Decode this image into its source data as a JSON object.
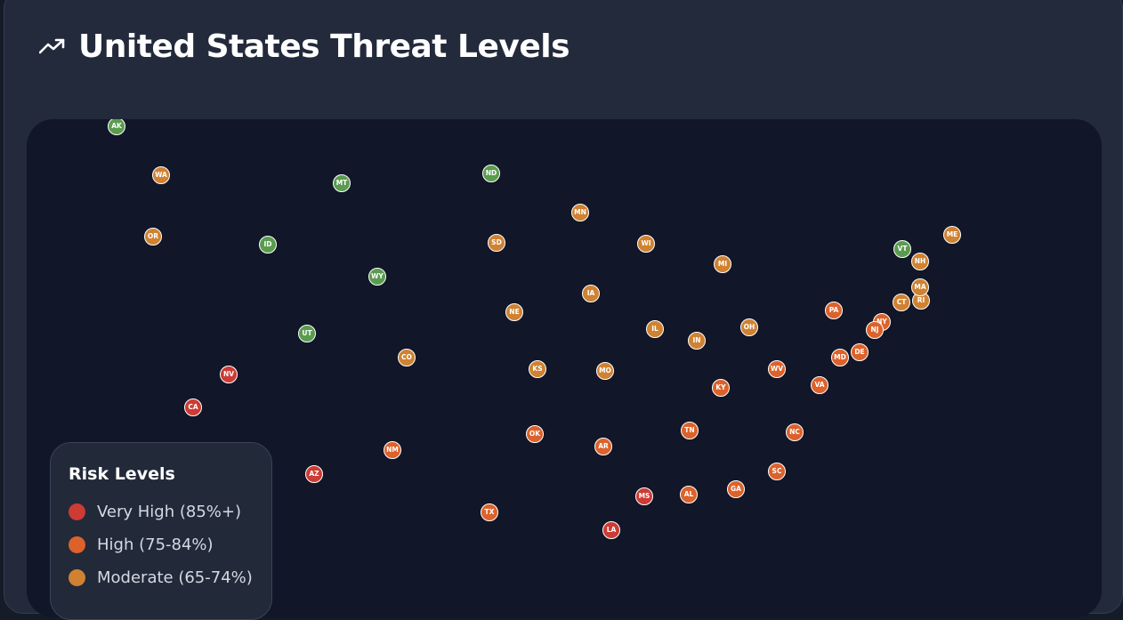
{
  "header": {
    "icon": "trending-up-icon",
    "title": "United States Threat Levels"
  },
  "colors": {
    "very_high": "#cc3b34",
    "high": "#dc622b",
    "moderate": "#cf8232",
    "low": "#5a9c4f"
  },
  "legend": {
    "title": "Risk Levels",
    "items": [
      {
        "label": "Very High (85%+)",
        "level": "very_high"
      },
      {
        "label": "High (75-84%)",
        "level": "high"
      },
      {
        "label": "Moderate (65-74%)",
        "level": "moderate"
      }
    ]
  },
  "states": [
    {
      "code": "AK",
      "level": "low"
    },
    {
      "code": "WA",
      "level": "moderate"
    },
    {
      "code": "MT",
      "level": "low"
    },
    {
      "code": "ND",
      "level": "low"
    },
    {
      "code": "MN",
      "level": "moderate"
    },
    {
      "code": "OR",
      "level": "moderate"
    },
    {
      "code": "ID",
      "level": "low"
    },
    {
      "code": "SD",
      "level": "moderate"
    },
    {
      "code": "WI",
      "level": "moderate"
    },
    {
      "code": "MI",
      "level": "moderate"
    },
    {
      "code": "WY",
      "level": "low"
    },
    {
      "code": "IA",
      "level": "moderate"
    },
    {
      "code": "NE",
      "level": "moderate"
    },
    {
      "code": "IL",
      "level": "moderate"
    },
    {
      "code": "IN",
      "level": "moderate"
    },
    {
      "code": "OH",
      "level": "moderate"
    },
    {
      "code": "UT",
      "level": "low"
    },
    {
      "code": "CO",
      "level": "moderate"
    },
    {
      "code": "KS",
      "level": "moderate"
    },
    {
      "code": "MO",
      "level": "moderate"
    },
    {
      "code": "NV",
      "level": "very_high"
    },
    {
      "code": "CA",
      "level": "very_high"
    },
    {
      "code": "WV",
      "level": "high"
    },
    {
      "code": "KY",
      "level": "high"
    },
    {
      "code": "VA",
      "level": "high"
    },
    {
      "code": "OK",
      "level": "high"
    },
    {
      "code": "AR",
      "level": "high"
    },
    {
      "code": "TN",
      "level": "high"
    },
    {
      "code": "NC",
      "level": "high"
    },
    {
      "code": "NM",
      "level": "high"
    },
    {
      "code": "AZ",
      "level": "very_high"
    },
    {
      "code": "SC",
      "level": "high"
    },
    {
      "code": "GA",
      "level": "high"
    },
    {
      "code": "AL",
      "level": "high"
    },
    {
      "code": "MS",
      "level": "very_high"
    },
    {
      "code": "TX",
      "level": "high"
    },
    {
      "code": "LA",
      "level": "very_high"
    },
    {
      "code": "PA",
      "level": "high"
    },
    {
      "code": "NY",
      "level": "high"
    },
    {
      "code": "NJ",
      "level": "high"
    },
    {
      "code": "MD",
      "level": "high"
    },
    {
      "code": "DE",
      "level": "high"
    },
    {
      "code": "ME",
      "level": "moderate"
    },
    {
      "code": "VT",
      "level": "low"
    },
    {
      "code": "NH",
      "level": "moderate"
    },
    {
      "code": "RI",
      "level": "moderate"
    },
    {
      "code": "CT",
      "level": "moderate"
    },
    {
      "code": "MA",
      "level": "moderate"
    }
  ]
}
